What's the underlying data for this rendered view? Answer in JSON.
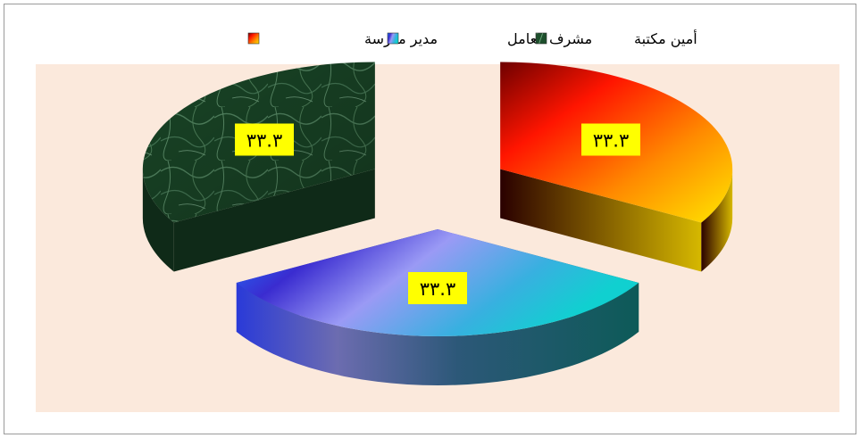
{
  "chart_data": {
    "type": "pie",
    "style": "3d-exploded",
    "categories": [
      "مدير مدرسة",
      "مشرف معامل",
      "أمين مكتبة"
    ],
    "values": [
      33.3,
      33.3,
      33.3
    ],
    "data_labels": [
      "٣٣.٣",
      "٣٣.٣",
      "٣٣.٣"
    ],
    "legend": {
      "placement": "top",
      "entries": [
        "مدير مدرسة",
        "مشرف معامل",
        "أمين مكتبة"
      ]
    },
    "colors": {
      "plot_background": "#fbe9dc",
      "label_background": "#ffff00",
      "series": [
        "#ff3b00",
        "#5a74f0",
        "#1f5a33"
      ]
    }
  }
}
